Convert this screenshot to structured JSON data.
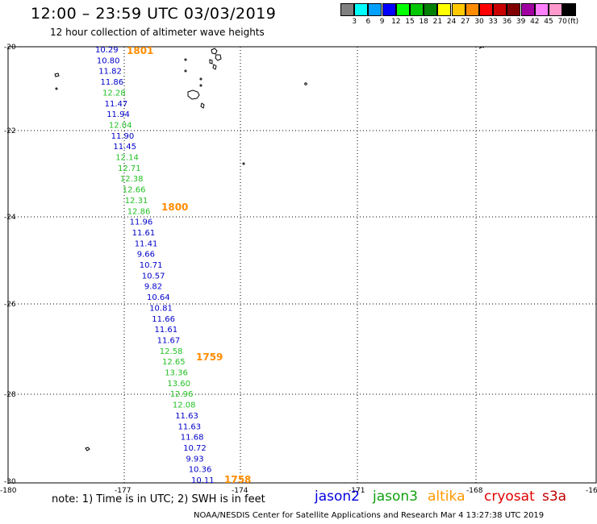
{
  "title": "12:00 – 23:59 UTC 03/03/2019",
  "subtitle": "12 hour collection of altimeter wave heights",
  "legend": {
    "colors": [
      "#808080",
      "#00ffff",
      "#00a0ff",
      "#0000ff",
      "#00ff00",
      "#00c800",
      "#008000",
      "#ffff00",
      "#ffc800",
      "#ff8c00",
      "#ff0000",
      "#c80000",
      "#800000",
      "#a000a0",
      "#ff80ff",
      "#ff99cc",
      "#000000"
    ],
    "labels": [
      "3",
      "6",
      "9",
      "12",
      "15",
      "18",
      "21",
      "24",
      "27",
      "30",
      "33",
      "36",
      "39",
      "42",
      "45",
      "70"
    ],
    "unit": "(ft)"
  },
  "axes": {
    "lat_labels": [
      "-20",
      "-22",
      "-24",
      "-26",
      "-28",
      "-30"
    ],
    "lon_labels": [
      "-180",
      "-177",
      "-174",
      "-171",
      "-168",
      "-16"
    ]
  },
  "colors": {
    "jason2": "#0000c8",
    "jason3": "#22c022",
    "altika": "#ff8c00",
    "cryosat": "#e00000",
    "s3a": "#d00000"
  },
  "wave_heights": [
    {
      "v": "10.29",
      "s": "jason2"
    },
    {
      "v": "10.80",
      "s": "jason2"
    },
    {
      "v": "11.82",
      "s": "jason2"
    },
    {
      "v": "11.86",
      "s": "jason2"
    },
    {
      "v": "12.28",
      "s": "jason3"
    },
    {
      "v": "11.47",
      "s": "jason2"
    },
    {
      "v": "11.94",
      "s": "jason2"
    },
    {
      "v": "12.04",
      "s": "jason3"
    },
    {
      "v": "11.90",
      "s": "jason2"
    },
    {
      "v": "11.45",
      "s": "jason2"
    },
    {
      "v": "12.14",
      "s": "jason3"
    },
    {
      "v": "12.71",
      "s": "jason3"
    },
    {
      "v": "12.38",
      "s": "jason3"
    },
    {
      "v": "12.66",
      "s": "jason3"
    },
    {
      "v": "12.31",
      "s": "jason3"
    },
    {
      "v": "12.86",
      "s": "jason3"
    },
    {
      "v": "11.96",
      "s": "jason2"
    },
    {
      "v": "11.61",
      "s": "jason2"
    },
    {
      "v": "11.41",
      "s": "jason2"
    },
    {
      "v": "9.66",
      "s": "jason2"
    },
    {
      "v": "10.71",
      "s": "jason2"
    },
    {
      "v": "10.57",
      "s": "jason2"
    },
    {
      "v": "9.82",
      "s": "jason2"
    },
    {
      "v": "10.64",
      "s": "jason2"
    },
    {
      "v": "10.81",
      "s": "jason2"
    },
    {
      "v": "11.66",
      "s": "jason2"
    },
    {
      "v": "11.61",
      "s": "jason2"
    },
    {
      "v": "11.67",
      "s": "jason2"
    },
    {
      "v": "12.58",
      "s": "jason3"
    },
    {
      "v": "12.65",
      "s": "jason3"
    },
    {
      "v": "13.36",
      "s": "jason3"
    },
    {
      "v": "13.60",
      "s": "jason3"
    },
    {
      "v": "12.96",
      "s": "jason3"
    },
    {
      "v": "12.08",
      "s": "jason3"
    },
    {
      "v": "11.63",
      "s": "jason2"
    },
    {
      "v": "11.63",
      "s": "jason2"
    },
    {
      "v": "11.68",
      "s": "jason2"
    },
    {
      "v": "10.72",
      "s": "jason2"
    },
    {
      "v": "9.93",
      "s": "jason2"
    },
    {
      "v": "10.36",
      "s": "jason2"
    },
    {
      "v": "10.11",
      "s": "jason2"
    }
  ],
  "time_labels": [
    "1801",
    "1800",
    "1759",
    "1758"
  ],
  "note": "note:  1) Time is in UTC;  2) SWH is in feet",
  "satellites": [
    "jason2",
    "jason3",
    "altika",
    "cryosat",
    "s3a"
  ],
  "credit": "NOAA/NESDIS Center for Satellite Applications and Research    Mar  4 13:27:38 UTC 2019"
}
